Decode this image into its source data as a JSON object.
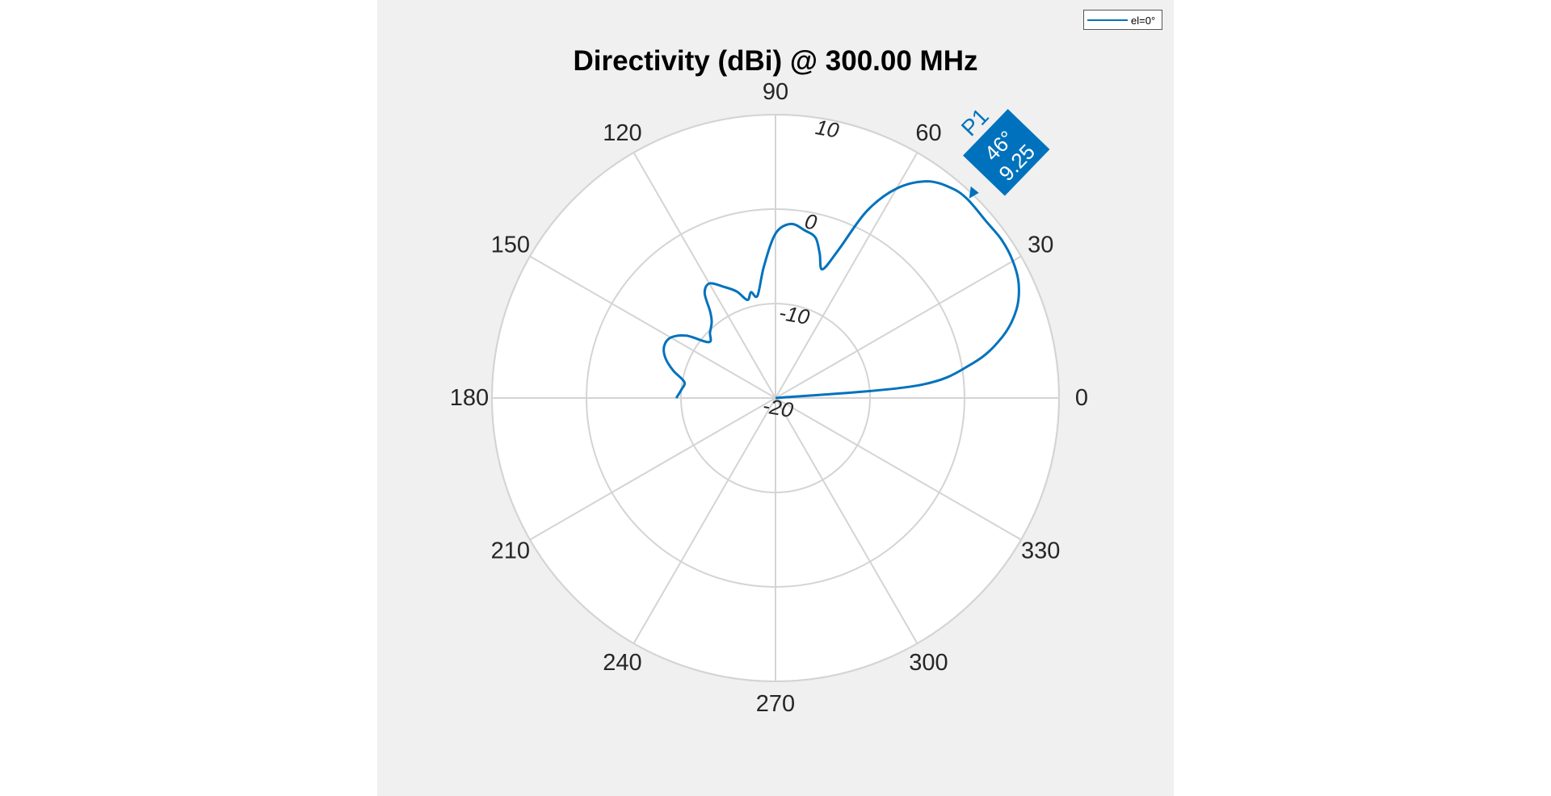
{
  "chart_data": {
    "type": "polar",
    "title": "Directivity (dBi) @ 300.00 MHz",
    "angle_ticks": [
      "0",
      "30",
      "60",
      "90",
      "120",
      "150",
      "180",
      "210",
      "240",
      "270",
      "300",
      "330"
    ],
    "radial_ticks": [
      "-20",
      "-10",
      "0",
      "10"
    ],
    "rlim": [
      -20,
      10
    ],
    "grid": true,
    "legend_position": "top-right",
    "series": [
      {
        "name": "el=0°",
        "color": "#0072bd",
        "theta_deg": [
          0,
          5,
          10,
          15,
          20,
          25,
          30,
          35,
          40,
          46,
          50,
          55,
          60,
          64,
          67,
          70,
          73,
          76,
          80,
          85,
          90,
          95,
          100,
          103,
          106,
          110,
          115,
          120,
          124,
          127,
          130,
          135,
          140,
          145,
          150,
          155,
          160,
          165,
          170,
          175,
          180
        ],
        "r_dbi": [
          -20,
          -5,
          1.2,
          4.8,
          7.1,
          8.4,
          9.0,
          9.2,
          9.1,
          9.25,
          9.0,
          8.0,
          5.6,
          2.0,
          -3.0,
          -5.5,
          -4.0,
          -2.5,
          -2.0,
          -1.5,
          -2.6,
          -6.0,
          -9.0,
          -8.5,
          -9.2,
          -8.0,
          -7.0,
          -6.0,
          -6.6,
          -8.5,
          -9.5,
          -10.2,
          -10.8,
          -8.5,
          -7.2,
          -7.0,
          -7.6,
          -8.8,
          -10.2,
          -10.0,
          -9.5
        ]
      }
    ],
    "marker": {
      "label": "P1",
      "angle_text": "46°",
      "value_text": "9.25",
      "theta_deg": 46,
      "r_dbi": 9.25,
      "color": "#0072bd"
    }
  }
}
